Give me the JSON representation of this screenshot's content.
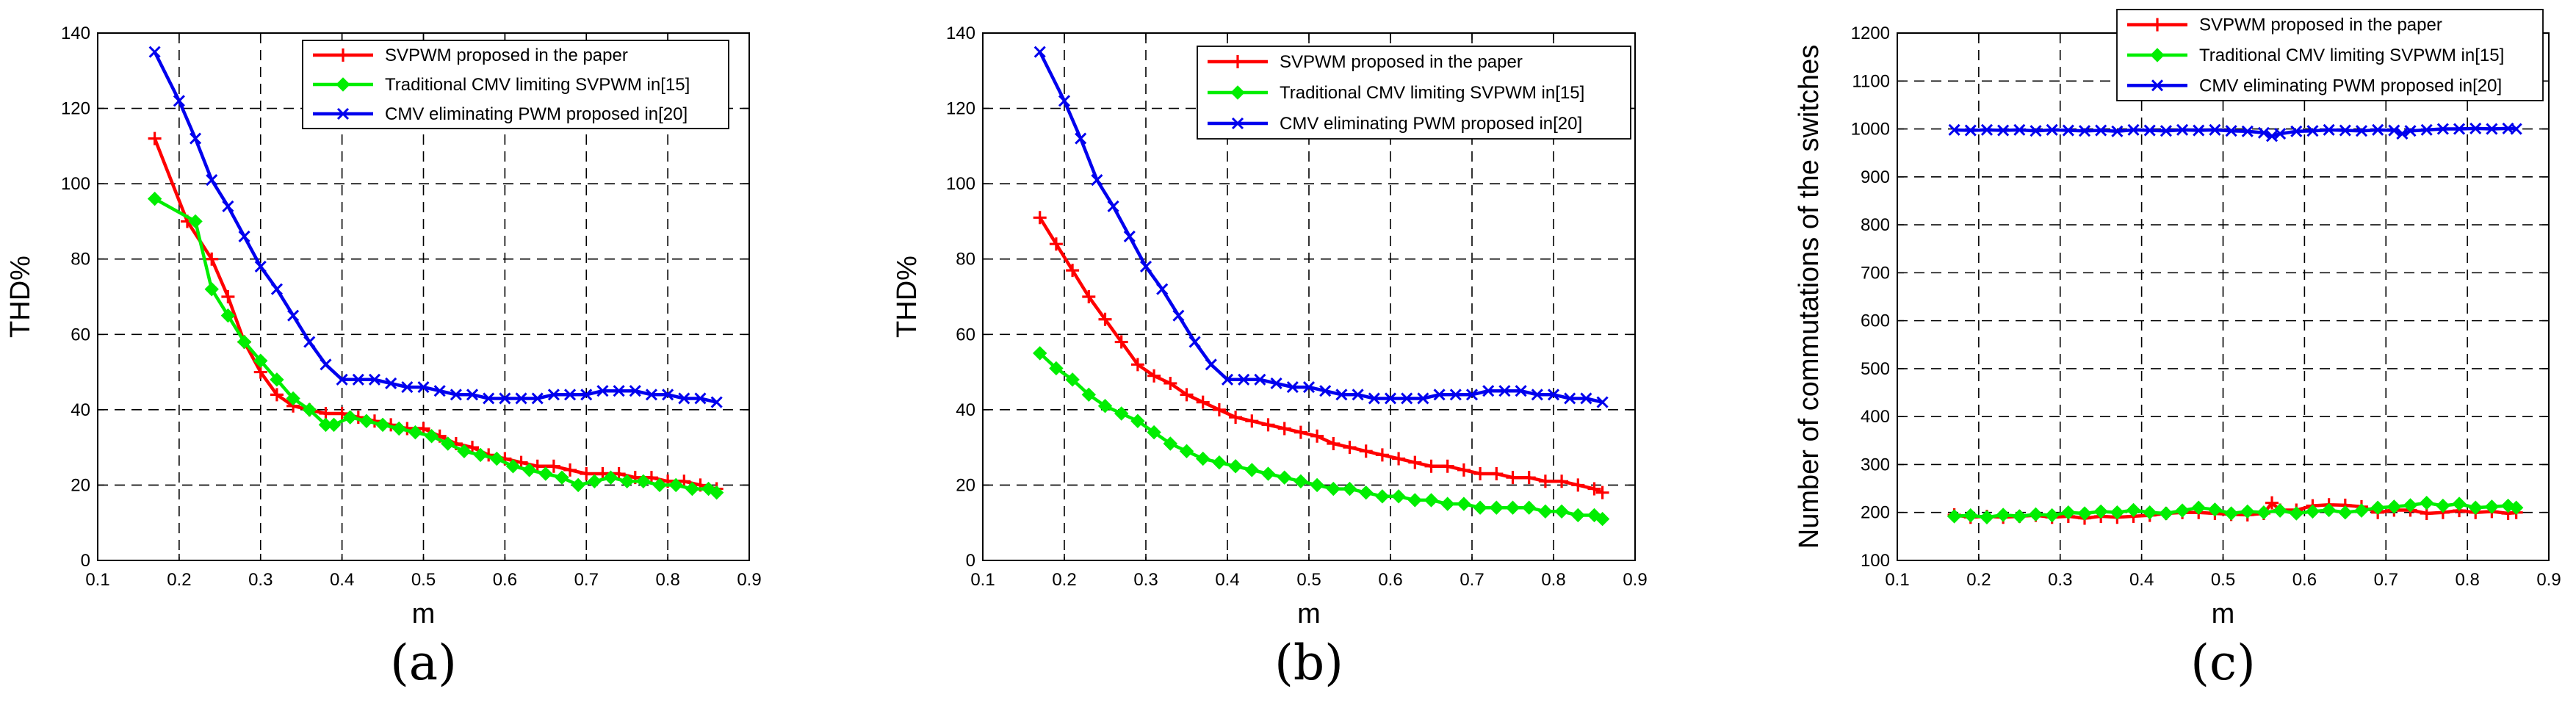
{
  "colors": {
    "series_red": "#ff0000",
    "series_green": "#00ee00",
    "series_blue": "#0000ee"
  },
  "chart_data": [
    {
      "type": "line",
      "panel_label": "(a)",
      "xlabel": "m",
      "ylabel": "THD%",
      "xlim": [
        0.1,
        0.9
      ],
      "ylim": [
        0,
        140
      ],
      "xticks": [
        "0.1",
        "0.2",
        "0.3",
        "0.4",
        "0.5",
        "0.6",
        "0.7",
        "0.8",
        "0.9"
      ],
      "yticks": [
        "0",
        "20",
        "40",
        "60",
        "80",
        "100",
        "120",
        "140"
      ],
      "grid": true,
      "legend_position": "top-right",
      "series": [
        {
          "name": "SVPWM proposed in the paper",
          "color": "#ff0000",
          "marker": "plus",
          "x": [
            0.17,
            0.21,
            0.24,
            0.26,
            0.28,
            0.3,
            0.32,
            0.34,
            0.36,
            0.38,
            0.4,
            0.42,
            0.44,
            0.46,
            0.48,
            0.5,
            0.52,
            0.54,
            0.56,
            0.58,
            0.6,
            0.62,
            0.64,
            0.66,
            0.68,
            0.7,
            0.72,
            0.74,
            0.76,
            0.78,
            0.8,
            0.82,
            0.84,
            0.86
          ],
          "y": [
            112,
            90,
            80,
            70,
            58,
            50,
            44,
            41,
            40,
            39,
            39,
            38,
            37,
            36,
            35,
            35,
            33,
            31,
            30,
            28,
            27,
            26,
            25,
            25,
            24,
            23,
            23,
            23,
            22,
            22,
            21,
            21,
            20,
            19
          ]
        },
        {
          "name": "Traditional CMV limiting SVPWM in[15]",
          "color": "#00ee00",
          "marker": "diamond",
          "x": [
            0.17,
            0.22,
            0.24,
            0.26,
            0.28,
            0.3,
            0.32,
            0.34,
            0.36,
            0.38,
            0.39,
            0.41,
            0.43,
            0.45,
            0.47,
            0.49,
            0.51,
            0.53,
            0.55,
            0.57,
            0.59,
            0.61,
            0.63,
            0.65,
            0.67,
            0.69,
            0.71,
            0.73,
            0.75,
            0.77,
            0.79,
            0.81,
            0.83,
            0.85,
            0.86
          ],
          "y": [
            96,
            90,
            72,
            65,
            58,
            53,
            48,
            43,
            40,
            36,
            36,
            38,
            37,
            36,
            35,
            34,
            33,
            31,
            29,
            28,
            27,
            25,
            24,
            23,
            22,
            20,
            21,
            22,
            21,
            21,
            20,
            20,
            19,
            19,
            18
          ]
        },
        {
          "name": "CMV eliminating PWM proposed in[20]",
          "color": "#0000ee",
          "marker": "x",
          "x": [
            0.17,
            0.2,
            0.22,
            0.24,
            0.26,
            0.28,
            0.3,
            0.32,
            0.34,
            0.36,
            0.38,
            0.4,
            0.42,
            0.44,
            0.46,
            0.48,
            0.5,
            0.52,
            0.54,
            0.56,
            0.58,
            0.6,
            0.62,
            0.64,
            0.66,
            0.68,
            0.7,
            0.72,
            0.74,
            0.76,
            0.78,
            0.8,
            0.82,
            0.84,
            0.86
          ],
          "y": [
            135,
            122,
            112,
            101,
            94,
            86,
            78,
            72,
            65,
            58,
            52,
            48,
            48,
            48,
            47,
            46,
            46,
            45,
            44,
            44,
            43,
            43,
            43,
            43,
            44,
            44,
            44,
            45,
            45,
            45,
            44,
            44,
            43,
            43,
            42
          ]
        }
      ]
    },
    {
      "type": "line",
      "panel_label": "(b)",
      "xlabel": "m",
      "ylabel": "THD%",
      "xlim": [
        0.1,
        0.9
      ],
      "ylim": [
        0,
        140
      ],
      "xticks": [
        "0.1",
        "0.2",
        "0.3",
        "0.4",
        "0.5",
        "0.6",
        "0.7",
        "0.8",
        "0.9"
      ],
      "yticks": [
        "0",
        "20",
        "40",
        "60",
        "80",
        "100",
        "120",
        "140"
      ],
      "grid": true,
      "legend_position": "top-right",
      "series": [
        {
          "name": "SVPWM proposed in the paper",
          "color": "#ff0000",
          "marker": "plus",
          "x": [
            0.17,
            0.19,
            0.21,
            0.23,
            0.25,
            0.27,
            0.29,
            0.31,
            0.33,
            0.35,
            0.37,
            0.39,
            0.41,
            0.43,
            0.45,
            0.47,
            0.49,
            0.51,
            0.53,
            0.55,
            0.57,
            0.59,
            0.61,
            0.63,
            0.65,
            0.67,
            0.69,
            0.71,
            0.73,
            0.75,
            0.77,
            0.79,
            0.81,
            0.83,
            0.85,
            0.86
          ],
          "y": [
            91,
            84,
            77,
            70,
            64,
            58,
            52,
            49,
            47,
            44,
            42,
            40,
            38,
            37,
            36,
            35,
            34,
            33,
            31,
            30,
            29,
            28,
            27,
            26,
            25,
            25,
            24,
            23,
            23,
            22,
            22,
            21,
            21,
            20,
            19,
            18
          ]
        },
        {
          "name": "Traditional CMV limiting SVPWM in[15]",
          "color": "#00ee00",
          "marker": "diamond",
          "x": [
            0.17,
            0.19,
            0.21,
            0.23,
            0.25,
            0.27,
            0.29,
            0.31,
            0.33,
            0.35,
            0.37,
            0.39,
            0.41,
            0.43,
            0.45,
            0.47,
            0.49,
            0.51,
            0.53,
            0.55,
            0.57,
            0.59,
            0.61,
            0.63,
            0.65,
            0.67,
            0.69,
            0.71,
            0.73,
            0.75,
            0.77,
            0.79,
            0.81,
            0.83,
            0.85,
            0.86
          ],
          "y": [
            55,
            51,
            48,
            44,
            41,
            39,
            37,
            34,
            31,
            29,
            27,
            26,
            25,
            24,
            23,
            22,
            21,
            20,
            19,
            19,
            18,
            17,
            17,
            16,
            16,
            15,
            15,
            14,
            14,
            14,
            14,
            13,
            13,
            12,
            12,
            11
          ]
        },
        {
          "name": "CMV eliminating PWM proposed in[20]",
          "color": "#0000ee",
          "marker": "x",
          "x": [
            0.17,
            0.2,
            0.22,
            0.24,
            0.26,
            0.28,
            0.3,
            0.32,
            0.34,
            0.36,
            0.38,
            0.4,
            0.42,
            0.44,
            0.46,
            0.48,
            0.5,
            0.52,
            0.54,
            0.56,
            0.58,
            0.6,
            0.62,
            0.64,
            0.66,
            0.68,
            0.7,
            0.72,
            0.74,
            0.76,
            0.78,
            0.8,
            0.82,
            0.84,
            0.86
          ],
          "y": [
            135,
            122,
            112,
            101,
            94,
            86,
            78,
            72,
            65,
            58,
            52,
            48,
            48,
            48,
            47,
            46,
            46,
            45,
            44,
            44,
            43,
            43,
            43,
            43,
            44,
            44,
            44,
            45,
            45,
            45,
            44,
            44,
            43,
            43,
            42
          ]
        }
      ]
    },
    {
      "type": "line",
      "panel_label": "(c)",
      "xlabel": "m",
      "ylabel": "Number of commutations of the switches",
      "xlim": [
        0.1,
        0.9
      ],
      "ylim": [
        100,
        1200
      ],
      "xticks": [
        "0.1",
        "0.2",
        "0.3",
        "0.4",
        "0.5",
        "0.6",
        "0.7",
        "0.8",
        "0.9"
      ],
      "yticks": [
        "100",
        "200",
        "300",
        "400",
        "500",
        "600",
        "700",
        "800",
        "900",
        "1000",
        "1100",
        "1200"
      ],
      "grid": true,
      "legend_position": "top-right",
      "series": [
        {
          "name": "SVPWM proposed in the paper",
          "color": "#ff0000",
          "marker": "plus",
          "x": [
            0.17,
            0.19,
            0.21,
            0.23,
            0.25,
            0.27,
            0.29,
            0.31,
            0.33,
            0.35,
            0.37,
            0.39,
            0.41,
            0.43,
            0.45,
            0.47,
            0.49,
            0.51,
            0.53,
            0.55,
            0.56,
            0.57,
            0.59,
            0.61,
            0.63,
            0.65,
            0.67,
            0.69,
            0.71,
            0.73,
            0.75,
            0.77,
            0.79,
            0.81,
            0.83,
            0.85,
            0.86
          ],
          "y": [
            195,
            190,
            192,
            190,
            192,
            194,
            190,
            192,
            188,
            192,
            190,
            192,
            194,
            198,
            200,
            200,
            198,
            196,
            195,
            198,
            220,
            205,
            205,
            214,
            216,
            215,
            212,
            200,
            205,
            205,
            198,
            200,
            204,
            200,
            202,
            198,
            200
          ]
        },
        {
          "name": "Traditional CMV limiting SVPWM in[15]",
          "color": "#00ee00",
          "marker": "diamond",
          "x": [
            0.17,
            0.19,
            0.21,
            0.23,
            0.25,
            0.27,
            0.29,
            0.31,
            0.33,
            0.35,
            0.37,
            0.39,
            0.41,
            0.43,
            0.45,
            0.47,
            0.49,
            0.51,
            0.53,
            0.55,
            0.57,
            0.59,
            0.61,
            0.63,
            0.65,
            0.67,
            0.69,
            0.71,
            0.73,
            0.75,
            0.77,
            0.79,
            0.81,
            0.83,
            0.85,
            0.86
          ],
          "y": [
            192,
            194,
            190,
            195,
            192,
            196,
            194,
            200,
            198,
            202,
            200,
            205,
            200,
            198,
            204,
            210,
            206,
            198,
            202,
            200,
            204,
            198,
            202,
            205,
            200,
            204,
            210,
            212,
            215,
            220,
            214,
            218,
            210,
            212,
            214,
            210
          ]
        },
        {
          "name": "CMV eliminating PWM proposed in[20]",
          "color": "#0000ee",
          "marker": "x",
          "x": [
            0.17,
            0.19,
            0.21,
            0.23,
            0.25,
            0.27,
            0.29,
            0.31,
            0.33,
            0.35,
            0.37,
            0.39,
            0.41,
            0.43,
            0.45,
            0.47,
            0.49,
            0.51,
            0.53,
            0.55,
            0.56,
            0.57,
            0.59,
            0.61,
            0.63,
            0.65,
            0.67,
            0.69,
            0.71,
            0.72,
            0.73,
            0.75,
            0.77,
            0.79,
            0.81,
            0.83,
            0.85,
            0.86
          ],
          "y": [
            998,
            997,
            998,
            997,
            998,
            996,
            998,
            997,
            996,
            997,
            995,
            998,
            997,
            996,
            998,
            997,
            998,
            996,
            995,
            992,
            985,
            990,
            995,
            996,
            998,
            997,
            996,
            998,
            997,
            990,
            996,
            998,
            1000,
            1000,
            1001,
            1000,
            1001,
            1000
          ]
        }
      ]
    }
  ]
}
